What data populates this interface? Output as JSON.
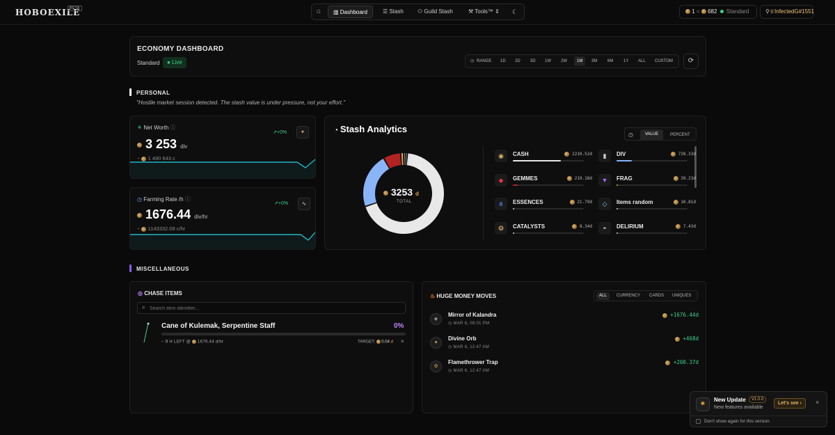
{
  "brand": {
    "logo": "HOBOEXILE",
    "badge": "BETA"
  },
  "nav": {
    "dashboard": "Dashboard",
    "stash": "Stash",
    "guild_stash": "Guild Stash",
    "tools": "Tools™"
  },
  "header_right": {
    "currency_a": "1",
    "sep": "=",
    "currency_b": "682",
    "league": "Standard",
    "user": "InfectedG#1551"
  },
  "dashboard": {
    "title": "ECONOMY DASHBOARD",
    "league": "Standard",
    "status": "Live",
    "range_label": "RANGE",
    "ranges": [
      "1D",
      "2D",
      "3D",
      "1W",
      "2W",
      "1M",
      "3M",
      "6M",
      "1Y",
      "ALL",
      "CUSTOM"
    ],
    "selected_range": "1M"
  },
  "personal": {
    "title": "PERSONAL",
    "quote": "\"Hostile market session detected. The stash value is under pressure, not your effort.\""
  },
  "net_worth": {
    "label": "Net Worth",
    "change": "+0%",
    "value": "3 253",
    "unit": "div",
    "sub_prefix": "~",
    "sub_value": "1 490 643",
    "sub_unit": "c"
  },
  "farming": {
    "label": "Farming Rate /h",
    "change": "+0%",
    "value": "1676.44",
    "unit": "div/hr",
    "sub_prefix": "~",
    "sub_value": "1143332.08",
    "sub_unit": "c/hr"
  },
  "analytics": {
    "title": "Stash Analytics",
    "mode_value": "VALUE",
    "mode_percent": "PERCENT",
    "total": "3253",
    "total_unit": "d",
    "total_label": "TOTAL",
    "categories": [
      {
        "name": "CASH",
        "value": "2210.52d",
        "pct": 0.68,
        "color": "#e8e8e8"
      },
      {
        "name": "DIV",
        "value": "728.33d",
        "pct": 0.22,
        "color": "#8ab4f8"
      },
      {
        "name": "GEMMES",
        "value": "219.18d",
        "pct": 0.07,
        "color": "#b22222"
      },
      {
        "name": "FRAG",
        "value": "39.23d",
        "pct": 0.012,
        "color": "#d9a441"
      },
      {
        "name": "ESSENCES",
        "value": "21.79d",
        "pct": 0.007,
        "color": "#cfcfcf"
      },
      {
        "name": "Items random",
        "value": "10.81d",
        "pct": 0.004,
        "color": "#cfcfcf"
      },
      {
        "name": "CATALYSTS",
        "value": "8.34d",
        "pct": 0.003,
        "color": "#cfcfcf"
      },
      {
        "name": "DELIRIUM",
        "value": "7.43d",
        "pct": 0.002,
        "color": "#cfcfcf"
      }
    ]
  },
  "misc": {
    "title": "MISCELLANEOUS"
  },
  "chase": {
    "title": "CHASE ITEMS",
    "search_placeholder": "Search item identifier...",
    "item_name": "Cane of Kulemak, Serpentine Staff",
    "progress": "0%",
    "progress_value": 0,
    "left_prefix": "~",
    "left_value": "0",
    "left_label": "H LEFT @",
    "rate": "1676.44",
    "rate_unit": "d/hr",
    "target_label": "TARGET:",
    "target_value": "0.04",
    "target_unit": "d",
    "remove": "×"
  },
  "moves": {
    "title": "HUGE MONEY MOVES",
    "tabs": [
      "ALL",
      "CURRENCY",
      "CARDS",
      "UNIQUES"
    ],
    "items": [
      {
        "name": "Mirror of Kalandra",
        "date": "MAR 6, 08:01 PM",
        "amount": "+1676.44d"
      },
      {
        "name": "Divine Orb",
        "date": "MAR 6, 12:47 AM",
        "amount": "+468d"
      },
      {
        "name": "Flamethrower Trap",
        "date": "MAR 6, 12:47 AM",
        "amount": "+200.37d"
      }
    ]
  },
  "toast": {
    "title": "New Update",
    "version": "V1.0.0",
    "subtitle": "New features available",
    "cta": "Let's see",
    "dont_show": "Don't show again for this version",
    "close": "×"
  }
}
